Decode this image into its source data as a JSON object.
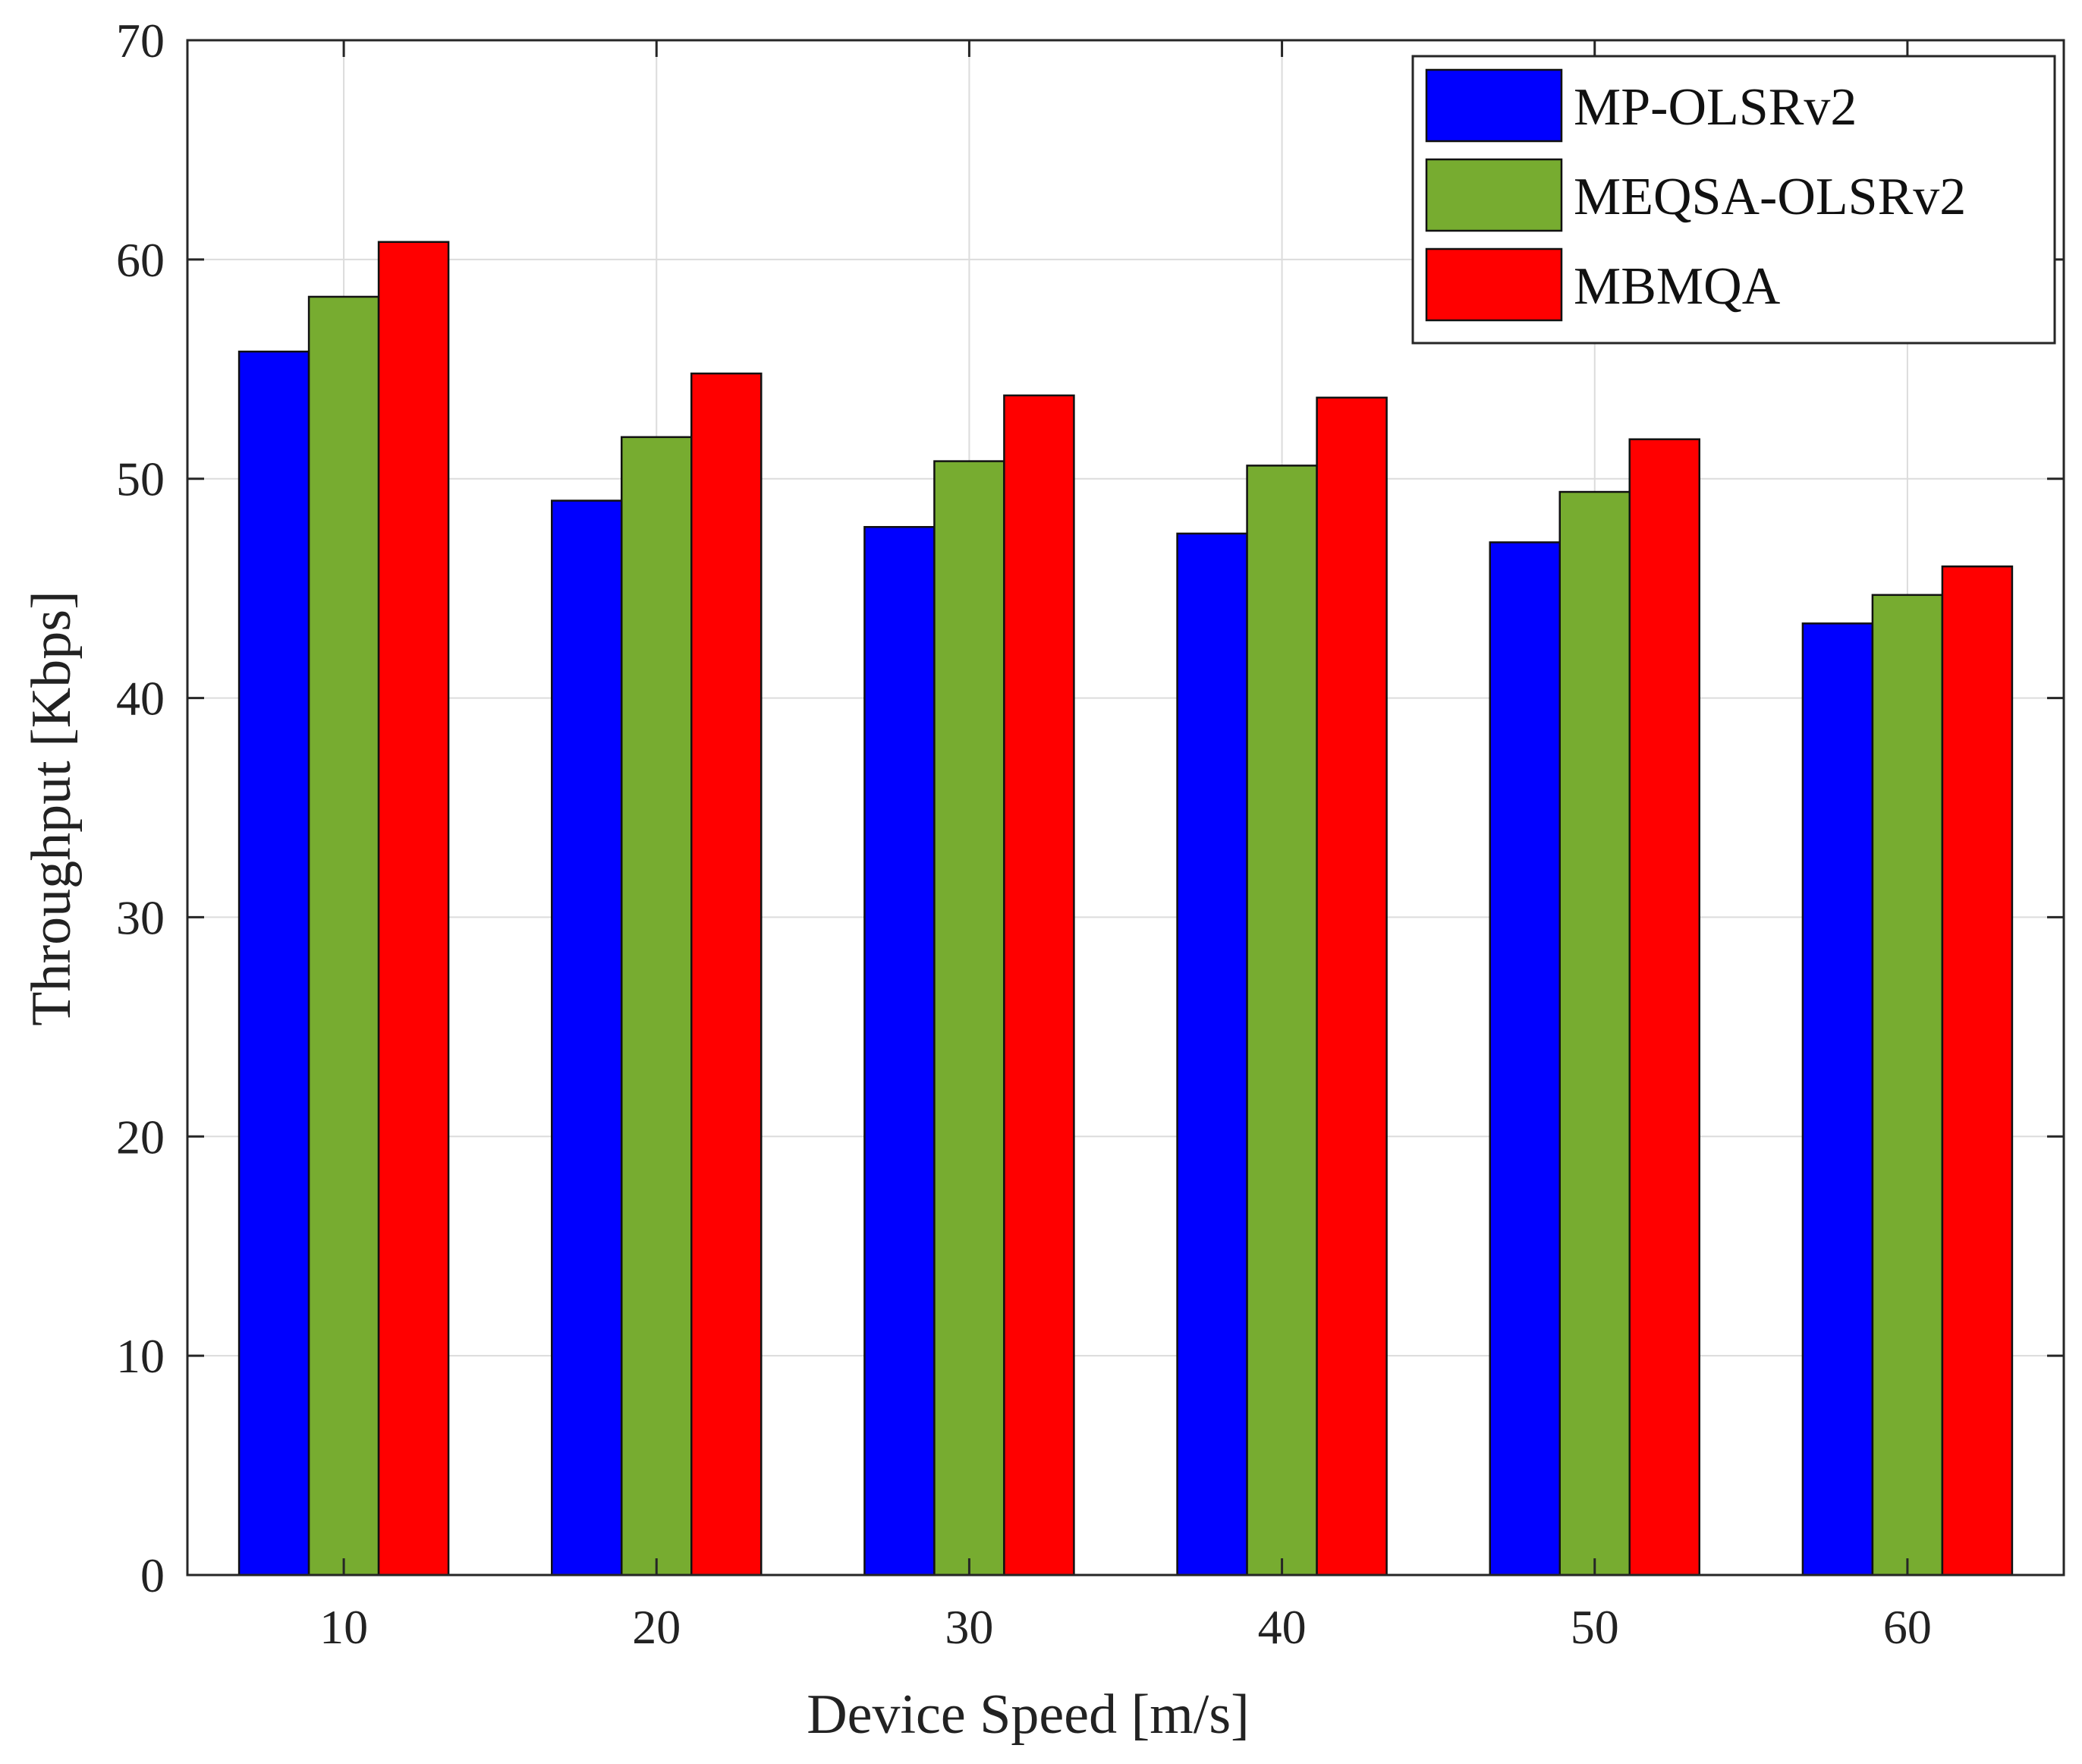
{
  "chart_data": {
    "type": "bar",
    "title": "",
    "xlabel": "Device Speed [m/s]",
    "ylabel": "Throughput [Kbps]",
    "categories": [
      "10",
      "20",
      "30",
      "40",
      "50",
      "60"
    ],
    "ylim": [
      0,
      70
    ],
    "yticks": [
      "0",
      "10",
      "20",
      "30",
      "40",
      "50",
      "60",
      "70"
    ],
    "grid": true,
    "legend_position": "top-right",
    "series": [
      {
        "name": "MP-OLSRv2",
        "color": "#0000ff",
        "values": [
          55.8,
          49.0,
          47.8,
          47.5,
          47.1,
          43.4
        ]
      },
      {
        "name": "MEQSA-OLSRv2",
        "color": "#77ac30",
        "values": [
          58.3,
          51.9,
          50.8,
          50.6,
          49.4,
          44.7
        ]
      },
      {
        "name": "MBMQA",
        "color": "#ff0000",
        "values": [
          60.8,
          54.8,
          53.8,
          53.7,
          51.8,
          46.0
        ]
      }
    ]
  }
}
